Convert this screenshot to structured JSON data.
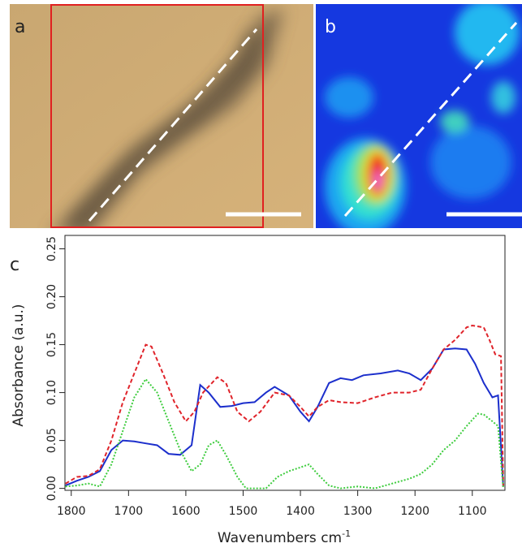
{
  "panel_labels": [
    "a",
    "b",
    "c"
  ],
  "chart_data": {
    "type": "line",
    "xlabel": "Wavenumbers cm",
    "xlabel_exponent": "-1",
    "ylabel": "Absorbance (a.u.)",
    "xlim": [
      1811,
      1043
    ],
    "ylim": [
      -0.002,
      0.264
    ],
    "xticks": [
      1800,
      1700,
      1600,
      1500,
      1400,
      1300,
      1200,
      1100
    ],
    "yticks": [
      {
        "value": 0,
        "label": "0.00"
      },
      {
        "value": 0.05,
        "label": "0.05"
      },
      {
        "value": 0.1,
        "label": "0.10"
      },
      {
        "value": 0.15,
        "label": "0.15"
      },
      {
        "value": 0.2,
        "label": "0.20"
      },
      {
        "value": 0.25,
        "label": "0.25"
      }
    ],
    "series": [
      {
        "color": "#1c2fcc",
        "dash": "solid",
        "x": [
          1810,
          1790,
          1770,
          1750,
          1730,
          1710,
          1690,
          1670,
          1650,
          1630,
          1610,
          1590,
          1575,
          1560,
          1540,
          1520,
          1500,
          1480,
          1460,
          1445,
          1420,
          1400,
          1385,
          1370,
          1350,
          1330,
          1310,
          1290,
          1260,
          1230,
          1210,
          1190,
          1170,
          1150,
          1130,
          1110,
          1095,
          1080,
          1065,
          1055,
          1046
        ],
        "values": [
          0.003,
          0.008,
          0.012,
          0.018,
          0.04,
          0.05,
          0.049,
          0.047,
          0.045,
          0.036,
          0.035,
          0.045,
          0.108,
          0.1,
          0.085,
          0.086,
          0.089,
          0.09,
          0.1,
          0.106,
          0.097,
          0.08,
          0.07,
          0.085,
          0.11,
          0.115,
          0.113,
          0.118,
          0.12,
          0.123,
          0.12,
          0.113,
          0.125,
          0.145,
          0.146,
          0.145,
          0.13,
          0.11,
          0.095,
          0.097,
          0.002
        ]
      },
      {
        "color": "#e0242b",
        "dash": "dashed",
        "x": [
          1810,
          1790,
          1770,
          1750,
          1730,
          1710,
          1690,
          1670,
          1660,
          1640,
          1620,
          1600,
          1585,
          1570,
          1545,
          1530,
          1510,
          1490,
          1470,
          1445,
          1420,
          1400,
          1385,
          1370,
          1350,
          1330,
          1300,
          1270,
          1240,
          1210,
          1190,
          1170,
          1150,
          1130,
          1110,
          1100,
          1080,
          1070,
          1060,
          1050,
          1046
        ],
        "values": [
          0.005,
          0.012,
          0.013,
          0.02,
          0.05,
          0.09,
          0.12,
          0.15,
          0.148,
          0.12,
          0.09,
          0.07,
          0.08,
          0.1,
          0.116,
          0.11,
          0.08,
          0.07,
          0.08,
          0.1,
          0.097,
          0.085,
          0.075,
          0.085,
          0.092,
          0.09,
          0.089,
          0.095,
          0.1,
          0.1,
          0.103,
          0.125,
          0.145,
          0.155,
          0.168,
          0.17,
          0.168,
          0.155,
          0.14,
          0.138,
          0.002
        ]
      },
      {
        "color": "#3dcc3d",
        "dash": "dotted",
        "x": [
          1810,
          1790,
          1770,
          1750,
          1730,
          1710,
          1690,
          1670,
          1650,
          1630,
          1610,
          1590,
          1575,
          1560,
          1545,
          1530,
          1510,
          1495,
          1480,
          1460,
          1440,
          1420,
          1400,
          1385,
          1370,
          1350,
          1330,
          1300,
          1270,
          1240,
          1210,
          1190,
          1170,
          1150,
          1130,
          1110,
          1090,
          1080,
          1065,
          1055,
          1046
        ],
        "values": [
          0.002,
          0.003,
          0.005,
          0.002,
          0.025,
          0.06,
          0.095,
          0.114,
          0.1,
          0.07,
          0.04,
          0.018,
          0.025,
          0.045,
          0.05,
          0.035,
          0.012,
          0,
          0,
          0,
          0.012,
          0.018,
          0.022,
          0.025,
          0.015,
          0.003,
          0,
          0.002,
          0,
          0.005,
          0.01,
          0.015,
          0.025,
          0.04,
          0.05,
          0.065,
          0.078,
          0.077,
          0.07,
          0.065,
          0
        ]
      }
    ]
  }
}
